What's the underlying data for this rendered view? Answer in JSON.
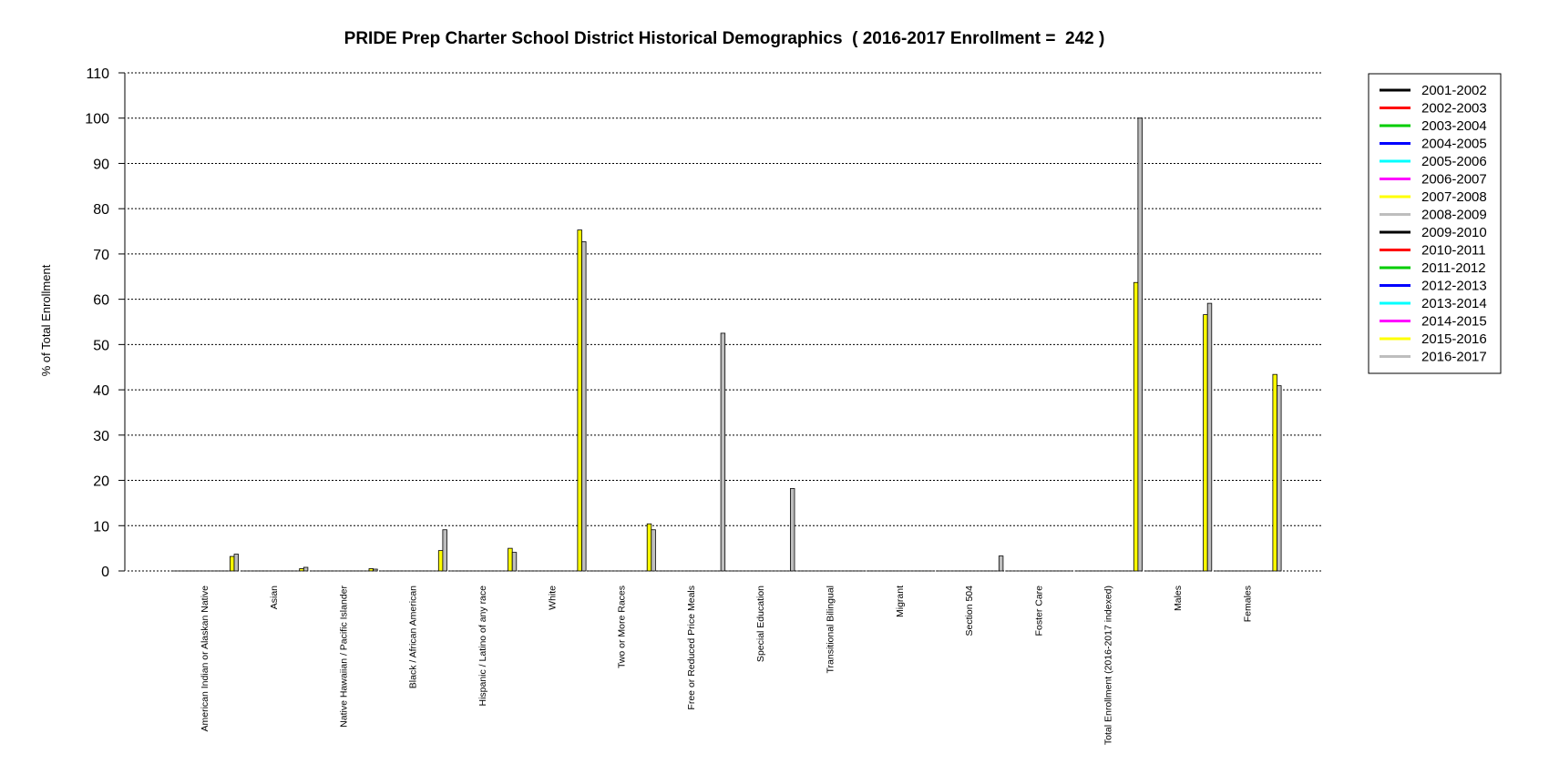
{
  "chart_data": {
    "type": "bar",
    "title": "PRIDE Prep Charter School District Historical Demographics  ( 2016-2017 Enrollment =  242 )",
    "xlabel": "",
    "ylabel": "% of Total Enrollment",
    "ylim": [
      0,
      110
    ],
    "yticks": [
      0,
      10,
      20,
      30,
      40,
      50,
      60,
      70,
      80,
      90,
      100,
      110
    ],
    "grid": "horizontal dotted",
    "legend_position": "right",
    "categories": [
      "American Indian or Alaskan Native",
      "Asian",
      "Native Hawaiian / Pacific Islander",
      "Black / African American",
      "Hispanic / Latino of any race",
      "White",
      "Two or More Races",
      "Free or Reduced Price Meals",
      "Special Education",
      "Transitional Bilingual",
      "Migrant",
      "Section 504",
      "Foster Care",
      "Total Enrollment (2016-2017 indexed)",
      "Males",
      "Females"
    ],
    "series": [
      {
        "name": "2001-2002",
        "color": "#000000",
        "values": [
          0,
          0,
          0,
          0,
          0,
          0,
          0,
          0,
          0,
          0,
          0,
          0,
          0,
          0,
          0,
          0
        ]
      },
      {
        "name": "2002-2003",
        "color": "#ff0000",
        "values": [
          0,
          0,
          0,
          0,
          0,
          0,
          0,
          0,
          0,
          0,
          0,
          0,
          0,
          0,
          0,
          0
        ]
      },
      {
        "name": "2003-2004",
        "color": "#00cd00",
        "values": [
          0,
          0,
          0,
          0,
          0,
          0,
          0,
          0,
          0,
          0,
          0,
          0,
          0,
          0,
          0,
          0
        ]
      },
      {
        "name": "2004-2005",
        "color": "#0000ff",
        "values": [
          0,
          0,
          0,
          0,
          0,
          0,
          0,
          0,
          0,
          0,
          0,
          0,
          0,
          0,
          0,
          0
        ]
      },
      {
        "name": "2005-2006",
        "color": "#00ffff",
        "values": [
          0,
          0,
          0,
          0,
          0,
          0,
          0,
          0,
          0,
          0,
          0,
          0,
          0,
          0,
          0,
          0
        ]
      },
      {
        "name": "2006-2007",
        "color": "#ff00ff",
        "values": [
          0,
          0,
          0,
          0,
          0,
          0,
          0,
          0,
          0,
          0,
          0,
          0,
          0,
          0,
          0,
          0
        ]
      },
      {
        "name": "2007-2008",
        "color": "#ffff00",
        "values": [
          0,
          0,
          0,
          0,
          0,
          0,
          0,
          0,
          0,
          0,
          0,
          0,
          0,
          0,
          0,
          0
        ]
      },
      {
        "name": "2008-2009",
        "color": "#bebebe",
        "values": [
          0,
          0,
          0,
          0,
          0,
          0,
          0,
          0,
          0,
          0,
          0,
          0,
          0,
          0,
          0,
          0
        ]
      },
      {
        "name": "2009-2010",
        "color": "#000000",
        "values": [
          0,
          0,
          0,
          0,
          0,
          0,
          0,
          0,
          0,
          0,
          0,
          0,
          0,
          0,
          0,
          0
        ]
      },
      {
        "name": "2010-2011",
        "color": "#ff0000",
        "values": [
          0,
          0,
          0,
          0,
          0,
          0,
          0,
          0,
          0,
          0,
          0,
          0,
          0,
          0,
          0,
          0
        ]
      },
      {
        "name": "2011-2012",
        "color": "#00cd00",
        "values": [
          0,
          0,
          0,
          0,
          0,
          0,
          0,
          0,
          0,
          0,
          0,
          0,
          0,
          0,
          0,
          0
        ]
      },
      {
        "name": "2012-2013",
        "color": "#0000ff",
        "values": [
          0,
          0,
          0,
          0,
          0,
          0,
          0,
          0,
          0,
          0,
          0,
          0,
          0,
          0,
          0,
          0
        ]
      },
      {
        "name": "2013-2014",
        "color": "#00ffff",
        "values": [
          0,
          0,
          0,
          0,
          0,
          0,
          0,
          0,
          0,
          0,
          0,
          0,
          0,
          0,
          0,
          0
        ]
      },
      {
        "name": "2014-2015",
        "color": "#ff00ff",
        "values": [
          0,
          0,
          0,
          0,
          0,
          0,
          0,
          0,
          0,
          0,
          0,
          0,
          0,
          0,
          0,
          0
        ]
      },
      {
        "name": "2015-2016",
        "color": "#ffff00",
        "values": [
          3.2,
          0.5,
          0.5,
          4.5,
          5.0,
          75.3,
          10.4,
          0,
          0,
          0,
          0,
          0,
          0,
          63.7,
          56.6,
          43.4
        ]
      },
      {
        "name": "2016-2017",
        "color": "#bebebe",
        "values": [
          3.7,
          0.8,
          0.4,
          9.1,
          4.1,
          72.7,
          9.1,
          52.5,
          18.2,
          0,
          0,
          3.3,
          0,
          100,
          59.1,
          40.9
        ]
      }
    ]
  }
}
